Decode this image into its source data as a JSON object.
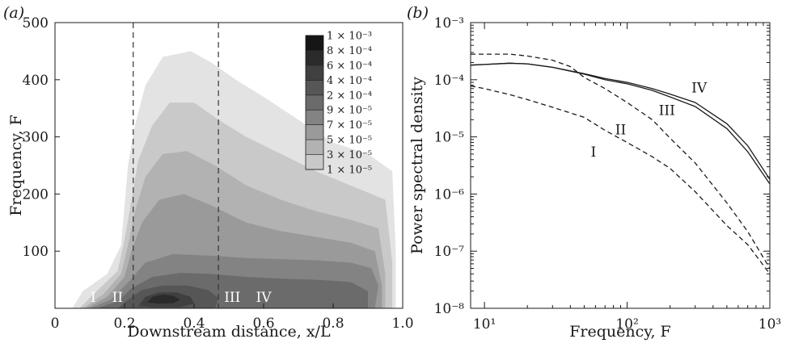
{
  "chart_data": [
    {
      "type": "heatmap",
      "panel_label": "(a)",
      "xlabel": "Downstream distance, x/L",
      "ylabel": "Frequency, F",
      "xlim": [
        0,
        1.0
      ],
      "ylim": [
        0,
        500
      ],
      "xticks": [
        "0",
        "0.2",
        "0.4",
        "0.6",
        "0.8",
        "1.0"
      ],
      "yticks": [
        "100",
        "200",
        "300",
        "400",
        "500"
      ],
      "dashed_lines_x": [
        0.225,
        0.47
      ],
      "region_labels": [
        {
          "text": "I",
          "x": 0.11,
          "y": 20
        },
        {
          "text": "II",
          "x": 0.18,
          "y": 20
        },
        {
          "text": "III",
          "x": 0.51,
          "y": 20
        },
        {
          "text": "IV",
          "x": 0.6,
          "y": 20
        }
      ],
      "colorbar_labels": [
        "1 × 10⁻³",
        "8 × 10⁻⁴",
        "6 × 10⁻⁴",
        "4 × 10⁻⁴",
        "2 × 10⁻⁴",
        "9 × 10⁻⁵",
        "7 × 10⁻⁵",
        "5 × 10⁻⁵",
        "3 × 10⁻⁵",
        "1 × 10⁻⁵"
      ],
      "colorbar_levels": [
        0.001,
        0.0008,
        0.0006,
        0.0004,
        0.0002,
        9e-05,
        7e-05,
        5e-05,
        3e-05,
        1e-05
      ],
      "colorbar_colors": [
        "#161616",
        "#2b2b2b",
        "#404040",
        "#565656",
        "#6b6b6b",
        "#838383",
        "#9a9a9a",
        "#b2b2b2",
        "#c9c9c9",
        "#e3e3e3",
        "#ffffff"
      ],
      "contours": [
        {
          "level": 1e-05,
          "poly": [
            [
              0.03,
              0
            ],
            [
              0.04,
              15
            ],
            [
              0.07,
              40
            ],
            [
              0.12,
              75
            ],
            [
              0.16,
              110
            ],
            [
              0.18,
              170
            ],
            [
              0.19,
              230
            ],
            [
              0.2,
              290
            ],
            [
              0.21,
              350
            ],
            [
              0.23,
              420
            ],
            [
              0.26,
              480
            ],
            [
              0.3,
              500
            ],
            [
              0.38,
              500
            ],
            [
              0.45,
              495
            ],
            [
              0.52,
              470
            ],
            [
              0.6,
              440
            ],
            [
              0.7,
              400
            ],
            [
              0.8,
              380
            ],
            [
              0.9,
              360
            ],
            [
              0.97,
              330
            ],
            [
              0.99,
              200
            ],
            [
              0.99,
              80
            ],
            [
              0.99,
              0
            ]
          ]
        },
        {
          "level": 3e-05,
          "poly": [
            [
              0.05,
              0
            ],
            [
              0.08,
              30
            ],
            [
              0.15,
              60
            ],
            [
              0.19,
              110
            ],
            [
              0.2,
              180
            ],
            [
              0.21,
              250
            ],
            [
              0.23,
              320
            ],
            [
              0.26,
              390
            ],
            [
              0.31,
              440
            ],
            [
              0.39,
              450
            ],
            [
              0.45,
              430
            ],
            [
              0.52,
              400
            ],
            [
              0.6,
              370
            ],
            [
              0.7,
              330
            ],
            [
              0.8,
              290
            ],
            [
              0.9,
              270
            ],
            [
              0.97,
              240
            ],
            [
              0.98,
              100
            ],
            [
              0.98,
              0
            ]
          ]
        },
        {
          "level": 5e-05,
          "poly": [
            [
              0.07,
              0
            ],
            [
              0.12,
              30
            ],
            [
              0.18,
              65
            ],
            [
              0.2,
              120
            ],
            [
              0.22,
              190
            ],
            [
              0.24,
              260
            ],
            [
              0.28,
              320
            ],
            [
              0.33,
              360
            ],
            [
              0.4,
              360
            ],
            [
              0.47,
              330
            ],
            [
              0.55,
              300
            ],
            [
              0.65,
              270
            ],
            [
              0.75,
              240
            ],
            [
              0.85,
              215
            ],
            [
              0.95,
              190
            ],
            [
              0.97,
              80
            ],
            [
              0.97,
              0
            ]
          ]
        },
        {
          "level": 7e-05,
          "poly": [
            [
              0.08,
              0
            ],
            [
              0.14,
              25
            ],
            [
              0.19,
              60
            ],
            [
              0.21,
              110
            ],
            [
              0.23,
              170
            ],
            [
              0.26,
              230
            ],
            [
              0.31,
              270
            ],
            [
              0.38,
              275
            ],
            [
              0.46,
              250
            ],
            [
              0.55,
              215
            ],
            [
              0.65,
              190
            ],
            [
              0.75,
              170
            ],
            [
              0.85,
              155
            ],
            [
              0.93,
              140
            ],
            [
              0.95,
              60
            ],
            [
              0.95,
              0
            ]
          ]
        },
        {
          "level": 9e-05,
          "poly": [
            [
              0.09,
              0
            ],
            [
              0.15,
              20
            ],
            [
              0.2,
              55
            ],
            [
              0.22,
              100
            ],
            [
              0.25,
              150
            ],
            [
              0.3,
              190
            ],
            [
              0.37,
              200
            ],
            [
              0.45,
              180
            ],
            [
              0.55,
              150
            ],
            [
              0.65,
              135
            ],
            [
              0.75,
              125
            ],
            [
              0.85,
              115
            ],
            [
              0.92,
              100
            ],
            [
              0.94,
              40
            ],
            [
              0.94,
              0
            ]
          ]
        },
        {
          "level": 0.0002,
          "poly": [
            [
              0.1,
              0
            ],
            [
              0.16,
              15
            ],
            [
              0.21,
              45
            ],
            [
              0.26,
              80
            ],
            [
              0.34,
              95
            ],
            [
              0.45,
              92
            ],
            [
              0.55,
              88
            ],
            [
              0.65,
              86
            ],
            [
              0.75,
              84
            ],
            [
              0.85,
              80
            ],
            [
              0.91,
              70
            ],
            [
              0.93,
              40
            ],
            [
              0.92,
              0
            ]
          ]
        },
        {
          "level": 0.0004,
          "poly": [
            [
              0.12,
              0
            ],
            [
              0.18,
              12
            ],
            [
              0.22,
              35
            ],
            [
              0.28,
              55
            ],
            [
              0.36,
              62
            ],
            [
              0.45,
              60
            ],
            [
              0.55,
              55
            ],
            [
              0.65,
              52
            ],
            [
              0.75,
              50
            ],
            [
              0.85,
              46
            ],
            [
              0.9,
              30
            ],
            [
              0.9,
              0
            ]
          ]
        },
        {
          "level": 0.0006,
          "poly": [
            [
              0.18,
              0
            ],
            [
              0.21,
              15
            ],
            [
              0.25,
              32
            ],
            [
              0.31,
              40
            ],
            [
              0.38,
              40
            ],
            [
              0.44,
              32
            ],
            [
              0.47,
              18
            ],
            [
              0.46,
              0
            ]
          ]
        },
        {
          "level": 0.0008,
          "poly": [
            [
              0.24,
              4
            ],
            [
              0.26,
              20
            ],
            [
              0.3,
              28
            ],
            [
              0.35,
              28
            ],
            [
              0.39,
              20
            ],
            [
              0.4,
              8
            ],
            [
              0.36,
              2
            ],
            [
              0.28,
              2
            ]
          ]
        },
        {
          "level": 0.001,
          "poly": [
            [
              0.265,
              10
            ],
            [
              0.28,
              20
            ],
            [
              0.31,
              24
            ],
            [
              0.34,
              22
            ],
            [
              0.36,
              15
            ],
            [
              0.34,
              9
            ],
            [
              0.3,
              8
            ]
          ]
        }
      ]
    },
    {
      "type": "line",
      "panel_label": "(b)",
      "xlabel": "Frequency, F",
      "ylabel": "Power spectral density",
      "xscale": "log",
      "yscale": "log",
      "xlim": [
        8,
        1000
      ],
      "ylim": [
        1e-08,
        0.001
      ],
      "xticks": [
        "10¹",
        "10²",
        "10³"
      ],
      "yticks": [
        "10⁻⁸",
        "10⁻⁷",
        "10⁻⁶",
        "10⁻⁵",
        "10⁻⁴",
        "10⁻³"
      ],
      "series": [
        {
          "name": "I",
          "style": "dashed",
          "x": [
            8,
            10,
            15,
            20,
            30,
            50,
            70,
            100,
            150,
            200,
            300,
            500,
            700,
            1000
          ],
          "y": [
            7.8e-05,
            7e-05,
            5.5e-05,
            4.5e-05,
            3.3e-05,
            2.2e-05,
            1.3e-05,
            8e-06,
            4.5e-06,
            2.8e-06,
            1.1e-06,
            2.8e-07,
            1.3e-07,
            4e-08
          ]
        },
        {
          "name": "II",
          "style": "dashed",
          "x": [
            8,
            10,
            15,
            20,
            30,
            40,
            50,
            70,
            100,
            150,
            200,
            300,
            500,
            700,
            1000
          ],
          "y": [
            0.00028,
            0.00028,
            0.00028,
            0.00026,
            0.00022,
            0.00017,
            0.00011,
            7e-05,
            4e-05,
            2e-05,
            9.5e-06,
            3.5e-06,
            7e-07,
            2.2e-07,
            5e-08
          ]
        },
        {
          "name": "III",
          "style": "solid",
          "x": [
            8,
            10,
            15,
            20,
            30,
            50,
            70,
            100,
            150,
            200,
            300,
            500,
            700,
            1000
          ],
          "y": [
            0.00018,
            0.000185,
            0.000195,
            0.00019,
            0.000165,
            0.000125,
            0.0001,
            8.5e-05,
            6.5e-05,
            5e-05,
            3.4e-05,
            1.4e-05,
            5.5e-06,
            1.5e-06
          ]
        },
        {
          "name": "IV",
          "style": "solid",
          "x": [
            8,
            10,
            15,
            20,
            30,
            50,
            70,
            100,
            150,
            200,
            300,
            500,
            700,
            1000
          ],
          "y": [
            0.00018,
            0.000185,
            0.000195,
            0.00019,
            0.000165,
            0.000128,
            0.000105,
            9e-05,
            7e-05,
            5.6e-05,
            4e-05,
            1.7e-05,
            7e-06,
            1.8e-06
          ]
        }
      ],
      "curve_labels": [
        {
          "text": "IV",
          "x": 320,
          "y": 6e-05
        },
        {
          "text": "III",
          "x": 190,
          "y": 2.4e-05
        },
        {
          "text": "II",
          "x": 90,
          "y": 1.1e-05
        },
        {
          "text": "I",
          "x": 58,
          "y": 4.5e-06
        }
      ]
    }
  ]
}
